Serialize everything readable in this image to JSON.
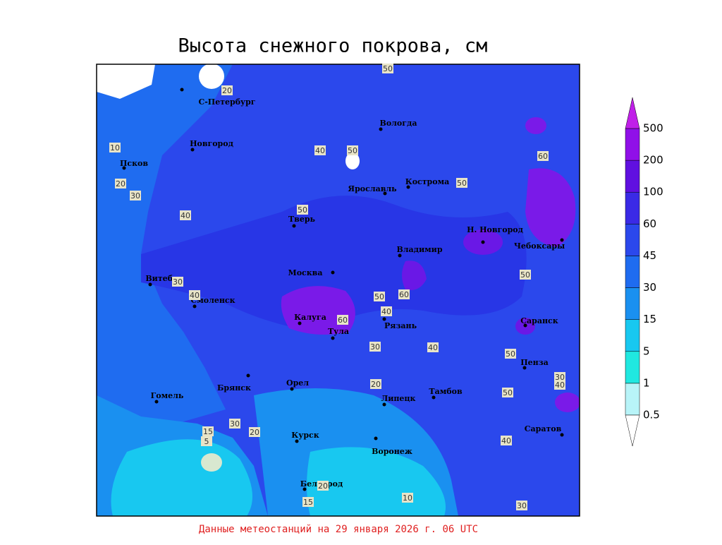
{
  "title": "Высота снежного покрова, см",
  "footer": "Данные метеостанций на 29 января 2026 г. 06 UTC",
  "cities": [
    "С-Петербург",
    "Новгород",
    "Псков",
    "Вологда",
    "Ярославль",
    "Кострома",
    "Тверь",
    "Н. Новгород",
    "Чебоксары",
    "Владимир",
    "Москва",
    "Витебск",
    "Смоленск",
    "Калуга",
    "Тула",
    "Рязань",
    "Саранск",
    "Пенза",
    "Брянск",
    "Орел",
    "Тамбов",
    "Гомель",
    "Липецк",
    "Курск",
    "Воронеж",
    "Саратов",
    "Белгород"
  ],
  "contour_labels": [
    50,
    20,
    10,
    40,
    50,
    20,
    30,
    40,
    50,
    50,
    60,
    30,
    40,
    50,
    60,
    40,
    60,
    50,
    30,
    40,
    50,
    30,
    40,
    20,
    50,
    15,
    30,
    20,
    5,
    20,
    10,
    15,
    40,
    30
  ],
  "legend": {
    "levels": [
      0.5,
      1,
      5,
      15,
      30,
      45,
      60,
      100,
      200,
      500
    ],
    "colors": [
      "#b8f4f8",
      "#20e8e0",
      "#18c8f0",
      "#1a90f0",
      "#1f6cf0",
      "#2b48ec",
      "#3a2ae6",
      "#6010e0",
      "#9010e8"
    ],
    "under_color": "#ffffff",
    "over_color": "#c020e8"
  }
}
